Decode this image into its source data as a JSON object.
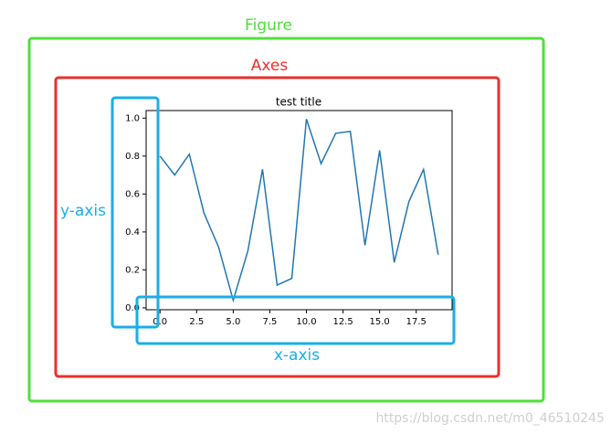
{
  "annotations": {
    "figure": "Figure",
    "axes": "Axes",
    "y_axis": "y-axis",
    "x_axis": "x-axis"
  },
  "watermark": "https://blog.csdn.net/m0_46510245",
  "chart_data": {
    "type": "line",
    "title": "test title",
    "x": [
      0,
      1,
      2,
      3,
      4,
      5,
      6,
      7,
      8,
      9,
      10,
      11,
      12,
      13,
      14,
      15,
      16,
      17,
      18,
      19
    ],
    "values": [
      0.8,
      0.7,
      0.81,
      0.5,
      0.32,
      0.04,
      0.3,
      0.73,
      0.12,
      0.155,
      0.995,
      0.76,
      0.92,
      0.93,
      0.33,
      0.83,
      0.24,
      0.56,
      0.73,
      0.28
    ],
    "color": "#1f77b4",
    "xlim": [
      -0.95,
      19.95
    ],
    "ylim": [
      -0.01,
      1.04
    ],
    "xticks": [
      {
        "value": 0,
        "label": "0.0"
      },
      {
        "value": 2.5,
        "label": "2.5"
      },
      {
        "value": 5,
        "label": "5.0"
      },
      {
        "value": 7.5,
        "label": "7.5"
      },
      {
        "value": 10,
        "label": "10.0"
      },
      {
        "value": 12.5,
        "label": "12.5"
      },
      {
        "value": 15,
        "label": "15.0"
      },
      {
        "value": 17.5,
        "label": "17.5"
      }
    ],
    "yticks": [
      {
        "value": 0,
        "label": "0.0"
      },
      0.2,
      0.4,
      0.6,
      0.8,
      {
        "value": 1,
        "label": "1.0"
      }
    ]
  }
}
